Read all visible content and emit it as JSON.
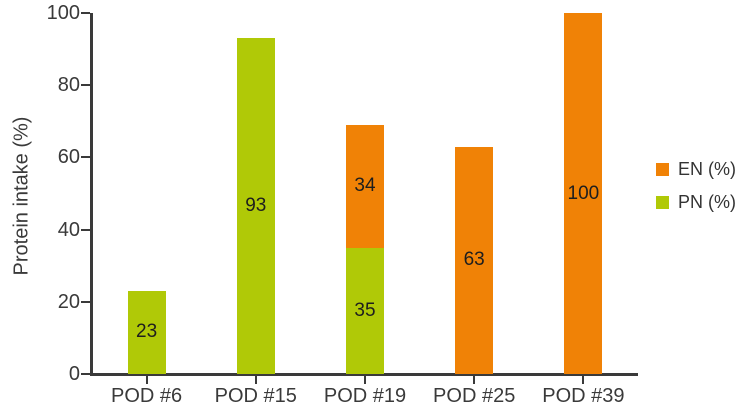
{
  "chart_data": {
    "type": "bar",
    "stacked": true,
    "title": "",
    "ylabel": "Protein intake (%)",
    "xlabel": "",
    "ylim": [
      0,
      100
    ],
    "yticks": [
      0,
      20,
      40,
      60,
      80,
      100
    ],
    "grid": false,
    "categories": [
      "POD #6",
      "POD #15",
      "POD #19",
      "POD #25",
      "POD #39"
    ],
    "series": [
      {
        "name": "PN (%)",
        "color": "#B0C907",
        "values": [
          23,
          93,
          35,
          0,
          0
        ]
      },
      {
        "name": "EN (%)",
        "color": "#F08206",
        "values": [
          0,
          0,
          34,
          63,
          100
        ]
      }
    ],
    "value_labels": "centered-in-segment",
    "legend": {
      "position": "right",
      "entries": [
        {
          "label": "EN (%)",
          "color": "#F08206"
        },
        {
          "label": "PN (%)",
          "color": "#B0C907"
        }
      ]
    }
  }
}
